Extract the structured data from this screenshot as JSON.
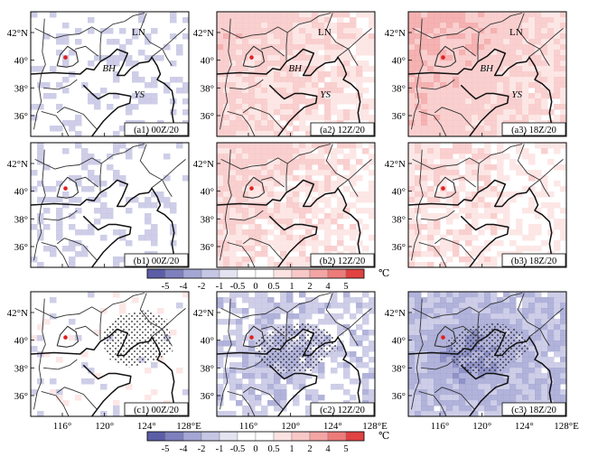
{
  "figure": {
    "lat_tick_labels": [
      "42°N",
      "40°",
      "38°",
      "36°"
    ],
    "lon_tick_labels": [
      "116°",
      "120°",
      "124°",
      "128°E"
    ],
    "region_labels": {
      "ln": "LN",
      "bh": "BH",
      "ys": "YS"
    }
  },
  "colors": {
    "neg5": "#5b5ea6",
    "neg4": "#7d80bd",
    "neg2": "#a4a6d3",
    "neg1": "#c5c6e4",
    "neg05": "#e3e3f1",
    "zero": "#ffffff",
    "pos05": "#fbe3e2",
    "pos1": "#f8c8c7",
    "pos2": "#f3a5a4",
    "pos4": "#ec7b7a",
    "pos5": "#e14242",
    "coast": "#111111",
    "border": "#333333",
    "station": "#e02020",
    "stipple": "#222222"
  },
  "chart_data": {
    "type": "heatmap",
    "lat_ticks": [
      42,
      40,
      38,
      36
    ],
    "lon_ticks": [
      116,
      120,
      124,
      128
    ],
    "lat_range": [
      34.5,
      43.5
    ],
    "lon_range": [
      113,
      128
    ],
    "colorbar": {
      "ticks": [
        "-5",
        "-4",
        "-2",
        "-1",
        "-0.5",
        "0",
        "0.5",
        "1",
        "2",
        "4",
        "5"
      ],
      "unit": "℃"
    },
    "panels": [
      {
        "id": "a1",
        "label": "(a1) 00Z/20",
        "row": 0,
        "col": 0,
        "mean_anomaly": -0.2,
        "show_regions": true,
        "stippling": false
      },
      {
        "id": "a2",
        "label": "(a2) 12Z/20",
        "row": 0,
        "col": 1,
        "mean_anomaly": 1.0,
        "show_regions": true,
        "stippling": false
      },
      {
        "id": "a3",
        "label": "(a3) 18Z/20",
        "row": 0,
        "col": 2,
        "mean_anomaly": 1.4,
        "show_regions": true,
        "stippling": false
      },
      {
        "id": "b1",
        "label": "(b1) 00Z/20",
        "row": 1,
        "col": 0,
        "mean_anomaly": -0.2,
        "show_regions": false,
        "stippling": false
      },
      {
        "id": "b2",
        "label": "(b2) 12Z/20",
        "row": 1,
        "col": 1,
        "mean_anomaly": 0.8,
        "show_regions": false,
        "stippling": false
      },
      {
        "id": "b3",
        "label": "(b3) 18Z/20",
        "row": 1,
        "col": 2,
        "mean_anomaly": 0.6,
        "show_regions": false,
        "stippling": false
      },
      {
        "id": "c1",
        "label": "(c1) 00Z/20",
        "row": 2,
        "col": 0,
        "mean_anomaly": 0.0,
        "show_regions": false,
        "stippling": true
      },
      {
        "id": "c2",
        "label": "(c2) 12Z/20",
        "row": 2,
        "col": 1,
        "mean_anomaly": -0.9,
        "show_regions": false,
        "stippling": true
      },
      {
        "id": "c3",
        "label": "(c3) 18Z/20",
        "row": 2,
        "col": 2,
        "mean_anomaly": -1.6,
        "show_regions": false,
        "stippling": true
      }
    ]
  }
}
